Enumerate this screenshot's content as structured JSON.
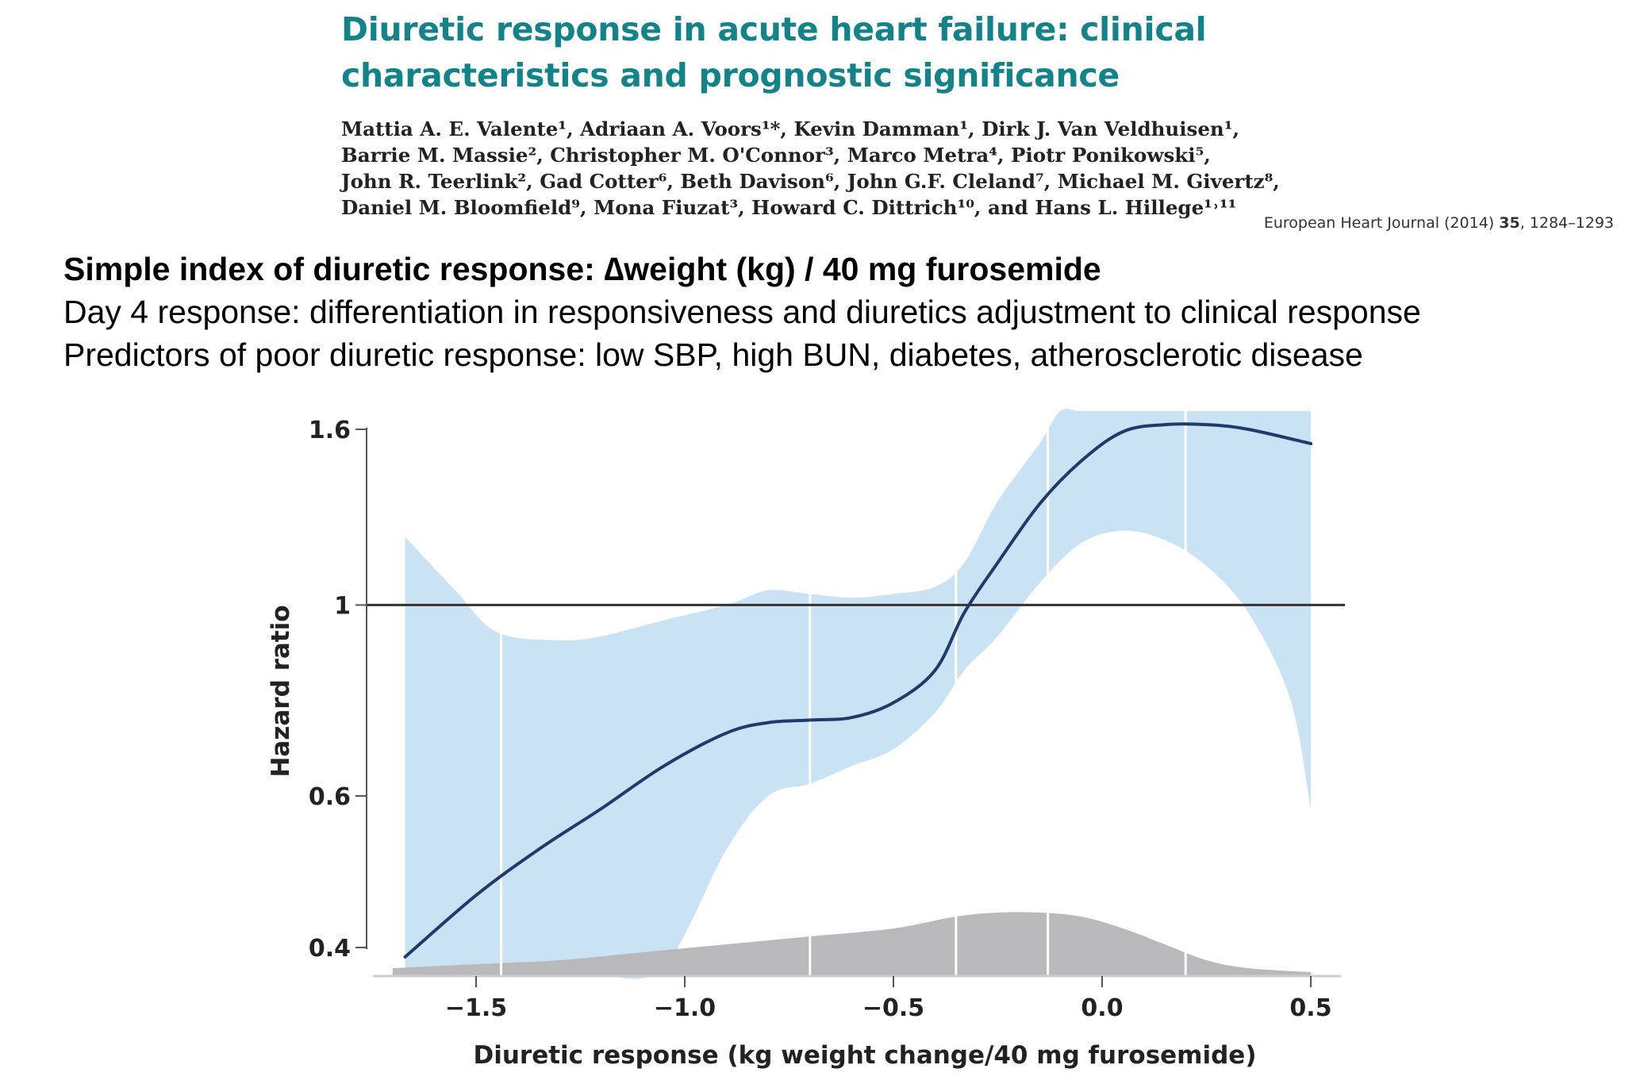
{
  "paper": {
    "title_lines": [
      "Diuretic response in acute heart failure: clinical",
      "characteristics and prognostic significance"
    ],
    "author_lines": [
      "Mattia A. E. Valente¹, Adriaan A. Voors¹*, Kevin Damman¹, Dirk J. Van Veldhuisen¹,",
      "Barrie M. Massie², Christopher M. O'Connor³, Marco Metra⁴, Piotr Ponikowski⁵,",
      "John R. Teerlink², Gad Cotter⁶, Beth Davison⁶, John G.F. Cleland⁷, Michael M. Givertz⁸,",
      "Daniel M. Bloomfield⁹, Mona Fiuzat³, Howard C. Dittrich¹⁰, and Hans L. Hillege¹˒¹¹"
    ],
    "journal_name": "European Heart Journal (2014)",
    "journal_volume": "35",
    "journal_pages": ", 1284–1293"
  },
  "slide": {
    "headline": "Simple index of diuretic response: ∆weight (kg) / 40 mg furosemide",
    "bullets": [
      "Day 4 response: differentiation in responsiveness and diuretics adjustment to clinical response",
      "Predictors of poor diuretic response: low SBP, high BUN, diabetes, atherosclerotic disease"
    ]
  },
  "colors": {
    "ci_band": "#c9e2f4",
    "curve": "#1f3a6b",
    "density": "#b9b9bb",
    "reference_line": "#333333",
    "axis": "#555555",
    "title": "#13838a"
  },
  "chart_data": {
    "type": "line",
    "title": "",
    "xlabel": "Diuretic response (kg weight change/40 mg furosemide)",
    "ylabel": "Hazard ratio",
    "xlim": [
      -1.75,
      0.57
    ],
    "ylim": [
      0.34,
      1.68
    ],
    "x_ticks": [
      -1.5,
      -1.0,
      -0.5,
      0.0,
      0.5
    ],
    "x_tick_labels": [
      "−1.5",
      "−1.0",
      "−0.5",
      "0.0",
      "0.5"
    ],
    "y_ticks": [
      1.6,
      1,
      0.6,
      0.4
    ],
    "y_tick_labels": [
      "1.6",
      "1",
      "0.6",
      "0.4"
    ],
    "grid": false,
    "reference_line_y": 1,
    "vertical_guides_x": [
      -1.44,
      -0.7,
      -0.35,
      -0.13,
      0.2
    ],
    "series": [
      {
        "role": "estimate",
        "x": [
          -1.67,
          -1.5,
          -1.35,
          -1.2,
          -1.05,
          -0.9,
          -0.8,
          -0.7,
          -0.6,
          -0.5,
          -0.4,
          -0.33,
          -0.25,
          -0.15,
          -0.05,
          0.05,
          0.15,
          0.25,
          0.35,
          0.5
        ],
        "y": [
          0.39,
          0.46,
          0.52,
          0.58,
          0.65,
          0.71,
          0.73,
          0.735,
          0.74,
          0.77,
          0.84,
          0.98,
          1.12,
          1.31,
          1.47,
          1.59,
          1.62,
          1.62,
          1.6,
          1.54
        ]
      },
      {
        "role": "ci_upper",
        "x": [
          -1.67,
          -1.55,
          -1.45,
          -1.3,
          -1.2,
          -1.05,
          -0.9,
          -0.8,
          -0.7,
          -0.6,
          -0.5,
          -0.4,
          -0.33,
          -0.25,
          -0.15,
          -0.1,
          -0.05,
          0.05,
          0.15,
          0.25,
          0.35,
          0.5
        ],
        "y": [
          1.2,
          1.04,
          0.93,
          0.91,
          0.92,
          0.96,
          1.0,
          1.04,
          1.03,
          1.02,
          1.03,
          1.05,
          1.12,
          1.32,
          1.54,
          1.68,
          1.68,
          1.68,
          1.68,
          1.68,
          1.68,
          1.68
        ]
      },
      {
        "role": "ci_lower",
        "x": [
          -1.67,
          -1.45,
          -1.3,
          -1.2,
          -1.05,
          -0.9,
          -0.8,
          -0.7,
          -0.6,
          -0.5,
          -0.4,
          -0.33,
          -0.25,
          -0.15,
          -0.05,
          0.05,
          0.15,
          0.25,
          0.35,
          0.45,
          0.5
        ],
        "y": [
          0.34,
          0.34,
          0.34,
          0.34,
          0.38,
          0.52,
          0.6,
          0.62,
          0.65,
          0.68,
          0.75,
          0.84,
          0.92,
          1.06,
          1.18,
          1.22,
          1.19,
          1.11,
          0.98,
          0.78,
          0.58
        ]
      },
      {
        "role": "density",
        "x": [
          -1.7,
          -1.5,
          -1.3,
          -1.1,
          -0.9,
          -0.7,
          -0.5,
          -0.35,
          -0.25,
          -0.15,
          -0.05,
          0.05,
          0.15,
          0.25,
          0.35,
          0.5
        ],
        "y": [
          0.01,
          0.015,
          0.02,
          0.03,
          0.04,
          0.05,
          0.06,
          0.075,
          0.08,
          0.08,
          0.075,
          0.06,
          0.04,
          0.02,
          0.01,
          0.005
        ]
      }
    ]
  }
}
